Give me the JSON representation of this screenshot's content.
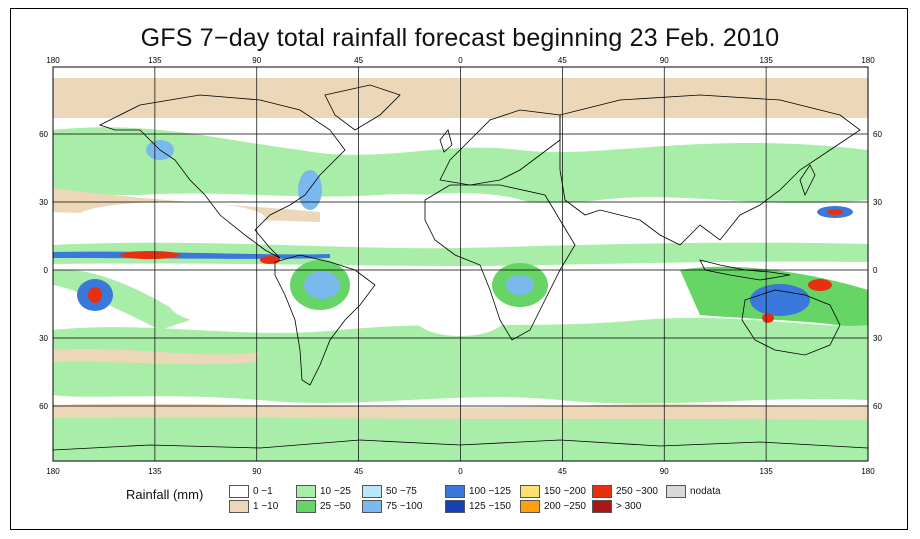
{
  "title": "GFS 7−day total rainfall forecast beginning 23 Feb. 2010",
  "longitude_ticks": [
    "180",
    "135",
    "90",
    "45",
    "0",
    "45",
    "90",
    "135",
    "180"
  ],
  "latitude_ticks": [
    "60",
    "30",
    "0",
    "30",
    "60"
  ],
  "legend": {
    "title": "Rainfall (mm)",
    "entries": [
      {
        "label": "0 −1",
        "color": "#ffffff"
      },
      {
        "label": "1 −10",
        "color": "#ecd7b8"
      },
      {
        "label": "10 −25",
        "color": "#a8eea8"
      },
      {
        "label": "25 −50",
        "color": "#66d566"
      },
      {
        "label": "50 −75",
        "color": "#b8e8f8"
      },
      {
        "label": "75 −100",
        "color": "#7ab8ee"
      },
      {
        "label": "100 −125",
        "color": "#3a78dc"
      },
      {
        "label": "125 −150",
        "color": "#1640b8"
      },
      {
        "label": "150 −200",
        "color": "#ffe070"
      },
      {
        "label": "200 −250",
        "color": "#ffa010"
      },
      {
        "label": "250 −300",
        "color": "#e83010"
      },
      {
        "label": "> 300",
        "color": "#a81818"
      },
      {
        "label": "nodata",
        "color": "#d8d8d8"
      }
    ]
  },
  "colors": {
    "ocean_dry": "#ffffff",
    "light_rain": "#ecd7b8",
    "moderate_rain": "#a8eea8",
    "heavy_rain": "#66d566",
    "grid": "#000000",
    "coastline": "#000000"
  }
}
